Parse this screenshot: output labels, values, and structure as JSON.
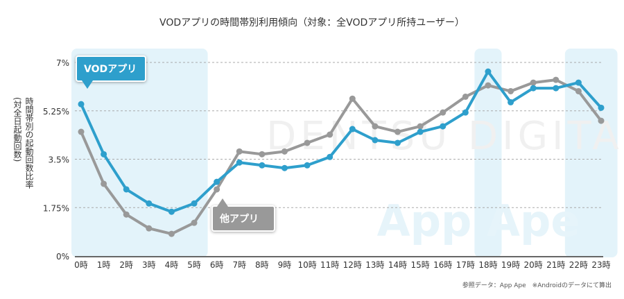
{
  "chart_data": {
    "type": "line",
    "title": "VODアプリの時間帯別利用傾向（対象：全VODアプリ所持ユーザー）",
    "ylabel_lines": [
      "時間帯別の起動回数比率",
      "(対全日起動回数)"
    ],
    "categories": [
      "0時",
      "1時",
      "2時",
      "3時",
      "4時",
      "5時",
      "6時",
      "7時",
      "8時",
      "9時",
      "10時",
      "11時",
      "12時",
      "13時",
      "14時",
      "15時",
      "16時",
      "17時",
      "18時",
      "19時",
      "20時",
      "21時",
      "22時",
      "23時"
    ],
    "yticks": [
      "0%",
      "1.75%",
      "3.5%",
      "5.25%",
      "7%"
    ],
    "ytick_values": [
      0,
      1.75,
      3.5,
      5.25,
      7
    ],
    "ylim": [
      0,
      7
    ],
    "grid": true,
    "highlight_ranges": [
      [
        "0時",
        "5時"
      ],
      [
        "18時",
        "18時"
      ],
      [
        "22時",
        "23時"
      ]
    ],
    "series": [
      {
        "name": "VODアプリ",
        "color": "#2e9fcc",
        "values": [
          5.49,
          3.68,
          2.41,
          1.9,
          1.6,
          1.9,
          2.68,
          3.38,
          3.28,
          3.18,
          3.28,
          3.58,
          4.59,
          4.19,
          4.09,
          4.49,
          4.69,
          5.19,
          6.67,
          5.56,
          6.07,
          6.07,
          6.27,
          5.36
        ]
      },
      {
        "name": "他アプリ",
        "color": "#999999",
        "values": [
          4.49,
          2.61,
          1.5,
          1.0,
          0.8,
          1.2,
          2.41,
          3.78,
          3.68,
          3.78,
          4.09,
          4.39,
          5.69,
          4.69,
          4.49,
          4.69,
          5.19,
          5.76,
          6.17,
          5.96,
          6.27,
          6.37,
          5.96,
          4.89
        ]
      }
    ],
    "highlight_color": "#e3f3fa"
  },
  "watermarks": [
    "DENTSU DIGITAL",
    "App Ape"
  ],
  "footer": "参照データ：App Ape　※Androidのデータにて算出"
}
